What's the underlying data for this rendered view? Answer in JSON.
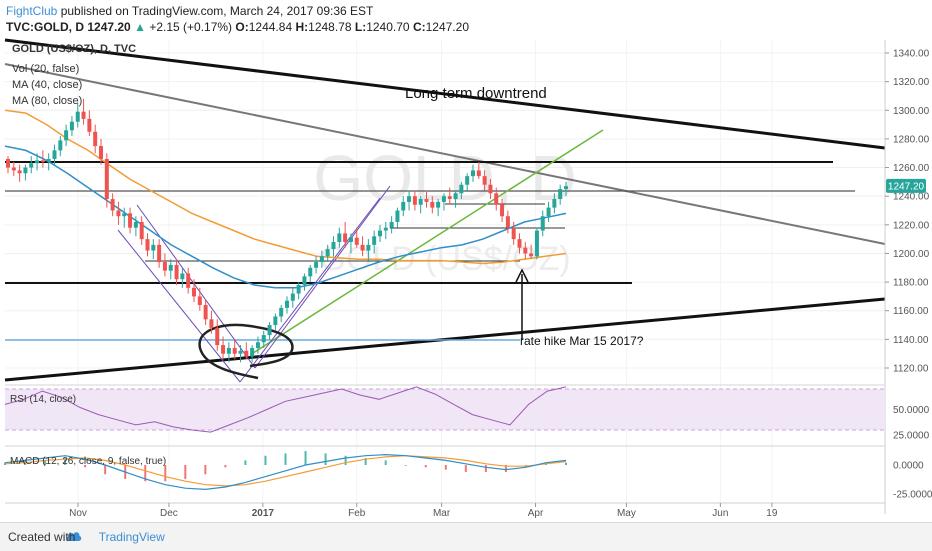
{
  "header": {
    "brand": "FightClub",
    "published": "published on TradingView.com, March 24, 2017 09:36 EST",
    "symbol": "TVC:GOLD, D",
    "last": "1247.20",
    "change": "+2.15 (+0.17%)",
    "o_label": "O:",
    "o": "1244.84",
    "h_label": "H:",
    "h": "1248.78",
    "l_label": "L:",
    "l": "1240.70",
    "c_label": "C:",
    "c": "1247.20"
  },
  "footer": {
    "created_with": "Created with",
    "brand": "TradingView"
  },
  "colors": {
    "up": "#26a69a",
    "down": "#ef5350",
    "ma40": "#2e8fc9",
    "ma80": "#f39c35",
    "rsi": "#9b59b6",
    "macd": "#2e8fc9",
    "signal": "#f39c35"
  },
  "chart_data": {
    "type": "candlestick",
    "watermark": "GOLD, D",
    "watermark_sub": "GOLD (US$/OZ)",
    "legend": [
      "GOLD (US$/OZ), D, TVC",
      "Vol (20, false)",
      "MA (40, close)",
      "MA (80, close)"
    ],
    "price_axis": {
      "min": 1110,
      "max": 1345,
      "ticks": [
        1340,
        1320,
        1300,
        1280,
        1260,
        1240,
        1220,
        1200,
        1180,
        1160,
        1140,
        1120
      ],
      "labels": [
        "1340.00",
        "1320.00",
        "1300.00",
        "1280.00",
        "1260.00",
        "1240.00",
        "1220.00",
        "1200.00",
        "1180.00",
        "1160.00",
        "1140.00",
        "1120.00"
      ]
    },
    "last_price": {
      "value": 1247.2,
      "label": "1247.20"
    },
    "x_axis": {
      "labels": [
        "Nov",
        "Dec",
        "2017",
        "Feb",
        "Mar",
        "Apr",
        "May",
        "Jun",
        "19"
      ],
      "positions": [
        0,
        30,
        61,
        92,
        120,
        151,
        181,
        212,
        229
      ]
    },
    "candles": [
      [
        1266,
        1268,
        1256,
        1260
      ],
      [
        1260,
        1264,
        1254,
        1258
      ],
      [
        1258,
        1262,
        1250,
        1256
      ],
      [
        1256,
        1262,
        1251,
        1260
      ],
      [
        1260,
        1268,
        1256,
        1263
      ],
      [
        1263,
        1270,
        1258,
        1265
      ],
      [
        1265,
        1272,
        1260,
        1264
      ],
      [
        1264,
        1270,
        1258,
        1266
      ],
      [
        1266,
        1276,
        1262,
        1272
      ],
      [
        1272,
        1282,
        1268,
        1279
      ],
      [
        1279,
        1290,
        1275,
        1286
      ],
      [
        1286,
        1296,
        1282,
        1292
      ],
      [
        1292,
        1305,
        1288,
        1299
      ],
      [
        1299,
        1308,
        1290,
        1294
      ],
      [
        1294,
        1300,
        1282,
        1285
      ],
      [
        1285,
        1290,
        1270,
        1275
      ],
      [
        1275,
        1280,
        1262,
        1266
      ],
      [
        1266,
        1270,
        1232,
        1238
      ],
      [
        1238,
        1242,
        1226,
        1230
      ],
      [
        1230,
        1236,
        1220,
        1226
      ],
      [
        1226,
        1232,
        1218,
        1228
      ],
      [
        1228,
        1232,
        1214,
        1218
      ],
      [
        1218,
        1226,
        1212,
        1222
      ],
      [
        1222,
        1226,
        1206,
        1210
      ],
      [
        1210,
        1214,
        1198,
        1202
      ],
      [
        1202,
        1210,
        1196,
        1206
      ],
      [
        1206,
        1210,
        1190,
        1194
      ],
      [
        1194,
        1200,
        1184,
        1188
      ],
      [
        1188,
        1196,
        1182,
        1192
      ],
      [
        1192,
        1196,
        1178,
        1182
      ],
      [
        1182,
        1190,
        1176,
        1186
      ],
      [
        1186,
        1190,
        1172,
        1176
      ],
      [
        1176,
        1182,
        1166,
        1170
      ],
      [
        1170,
        1176,
        1160,
        1164
      ],
      [
        1164,
        1168,
        1150,
        1154
      ],
      [
        1154,
        1160,
        1144,
        1148
      ],
      [
        1148,
        1154,
        1132,
        1136
      ],
      [
        1136,
        1142,
        1126,
        1130
      ],
      [
        1130,
        1138,
        1124,
        1134
      ],
      [
        1134,
        1140,
        1126,
        1130
      ],
      [
        1130,
        1136,
        1124,
        1132
      ],
      [
        1132,
        1138,
        1126,
        1128
      ],
      [
        1128,
        1136,
        1124,
        1134
      ],
      [
        1134,
        1142,
        1130,
        1138
      ],
      [
        1138,
        1146,
        1134,
        1143
      ],
      [
        1143,
        1152,
        1140,
        1150
      ],
      [
        1150,
        1158,
        1146,
        1156
      ],
      [
        1156,
        1164,
        1152,
        1162
      ],
      [
        1162,
        1170,
        1158,
        1167
      ],
      [
        1167,
        1176,
        1162,
        1172
      ],
      [
        1172,
        1180,
        1168,
        1178
      ],
      [
        1178,
        1186,
        1174,
        1184
      ],
      [
        1184,
        1192,
        1180,
        1190
      ],
      [
        1190,
        1198,
        1186,
        1194
      ],
      [
        1194,
        1202,
        1190,
        1198
      ],
      [
        1198,
        1206,
        1194,
        1203
      ],
      [
        1203,
        1212,
        1198,
        1208
      ],
      [
        1208,
        1218,
        1204,
        1214
      ],
      [
        1214,
        1222,
        1204,
        1208
      ],
      [
        1208,
        1214,
        1200,
        1211
      ],
      [
        1211,
        1218,
        1204,
        1206
      ],
      [
        1206,
        1212,
        1198,
        1202
      ],
      [
        1202,
        1210,
        1194,
        1206
      ],
      [
        1206,
        1216,
        1200,
        1212
      ],
      [
        1212,
        1220,
        1208,
        1216
      ],
      [
        1216,
        1222,
        1210,
        1218
      ],
      [
        1218,
        1226,
        1214,
        1222
      ],
      [
        1222,
        1232,
        1218,
        1230
      ],
      [
        1230,
        1240,
        1226,
        1236
      ],
      [
        1236,
        1244,
        1230,
        1240
      ],
      [
        1240,
        1244,
        1230,
        1234
      ],
      [
        1234,
        1240,
        1228,
        1238
      ],
      [
        1238,
        1244,
        1232,
        1236
      ],
      [
        1236,
        1240,
        1228,
        1232
      ],
      [
        1232,
        1238,
        1226,
        1236
      ],
      [
        1236,
        1242,
        1230,
        1240
      ],
      [
        1240,
        1246,
        1234,
        1238
      ],
      [
        1238,
        1244,
        1232,
        1242
      ],
      [
        1242,
        1250,
        1238,
        1248
      ],
      [
        1248,
        1256,
        1244,
        1254
      ],
      [
        1254,
        1262,
        1250,
        1258
      ],
      [
        1258,
        1264,
        1252,
        1254
      ],
      [
        1254,
        1258,
        1244,
        1248
      ],
      [
        1248,
        1252,
        1238,
        1242
      ],
      [
        1242,
        1246,
        1230,
        1234
      ],
      [
        1234,
        1238,
        1222,
        1226
      ],
      [
        1226,
        1230,
        1214,
        1218
      ],
      [
        1218,
        1222,
        1206,
        1210
      ],
      [
        1210,
        1214,
        1200,
        1204
      ],
      [
        1204,
        1208,
        1196,
        1200
      ],
      [
        1200,
        1206,
        1196,
        1198
      ],
      [
        1198,
        1218,
        1196,
        1216
      ],
      [
        1216,
        1230,
        1212,
        1226
      ],
      [
        1226,
        1236,
        1222,
        1232
      ],
      [
        1232,
        1242,
        1228,
        1238
      ],
      [
        1238,
        1248,
        1234,
        1245
      ],
      [
        1245,
        1250,
        1240,
        1247
      ]
    ],
    "ma40": [
      1275,
      1272,
      1265,
      1256,
      1246,
      1236,
      1226,
      1216,
      1206,
      1198,
      1190,
      1183,
      1178,
      1176,
      1176,
      1179,
      1184,
      1189,
      1194,
      1198,
      1201,
      1204,
      1206,
      1210,
      1216,
      1222,
      1225,
      1228
    ],
    "ma80": [
      1300,
      1298,
      1290,
      1280,
      1272,
      1262,
      1252,
      1244,
      1236,
      1228,
      1222,
      1216,
      1210,
      1206,
      1202,
      1198,
      1197,
      1196,
      1196,
      1195,
      1195,
      1195,
      1194,
      1193,
      1194,
      1196,
      1198,
      1200
    ],
    "annotations": [
      {
        "type": "text",
        "text": "Long term downtrend"
      },
      {
        "type": "text",
        "text": "rate hike Mar 15 2017?"
      }
    ],
    "rsi": {
      "legend": "RSI (14, close)",
      "ticks": [
        50,
        25
      ],
      "tick_labels": [
        "50.0000",
        "25.0000"
      ],
      "range": [
        20,
        80
      ],
      "values": [
        55,
        60,
        68,
        62,
        52,
        45,
        40,
        35,
        38,
        33,
        30,
        28,
        35,
        42,
        50,
        58,
        62,
        66,
        70,
        64,
        60,
        66,
        72,
        65,
        55,
        45,
        40,
        35,
        55,
        68,
        72
      ]
    },
    "macd": {
      "legend": "MACD (12, 26, close, 9, false, true)",
      "ticks": [
        0,
        -25
      ],
      "tick_labels": [
        "0.0000",
        "-25.0000"
      ],
      "range": [
        -30,
        12
      ],
      "macd": [
        2,
        4,
        6,
        8,
        5,
        0,
        -6,
        -12,
        -17,
        -20,
        -21,
        -19,
        -15,
        -10,
        -5,
        0,
        3,
        6,
        8,
        9,
        8,
        6,
        4,
        1,
        -2,
        -4,
        -2,
        2,
        4
      ],
      "signal": [
        1,
        2,
        4,
        5,
        6,
        4,
        0,
        -5,
        -10,
        -14,
        -17,
        -18,
        -17,
        -14,
        -10,
        -6,
        -2,
        2,
        5,
        7,
        8,
        7,
        6,
        4,
        1,
        -1,
        -1,
        1,
        3
      ]
    }
  }
}
